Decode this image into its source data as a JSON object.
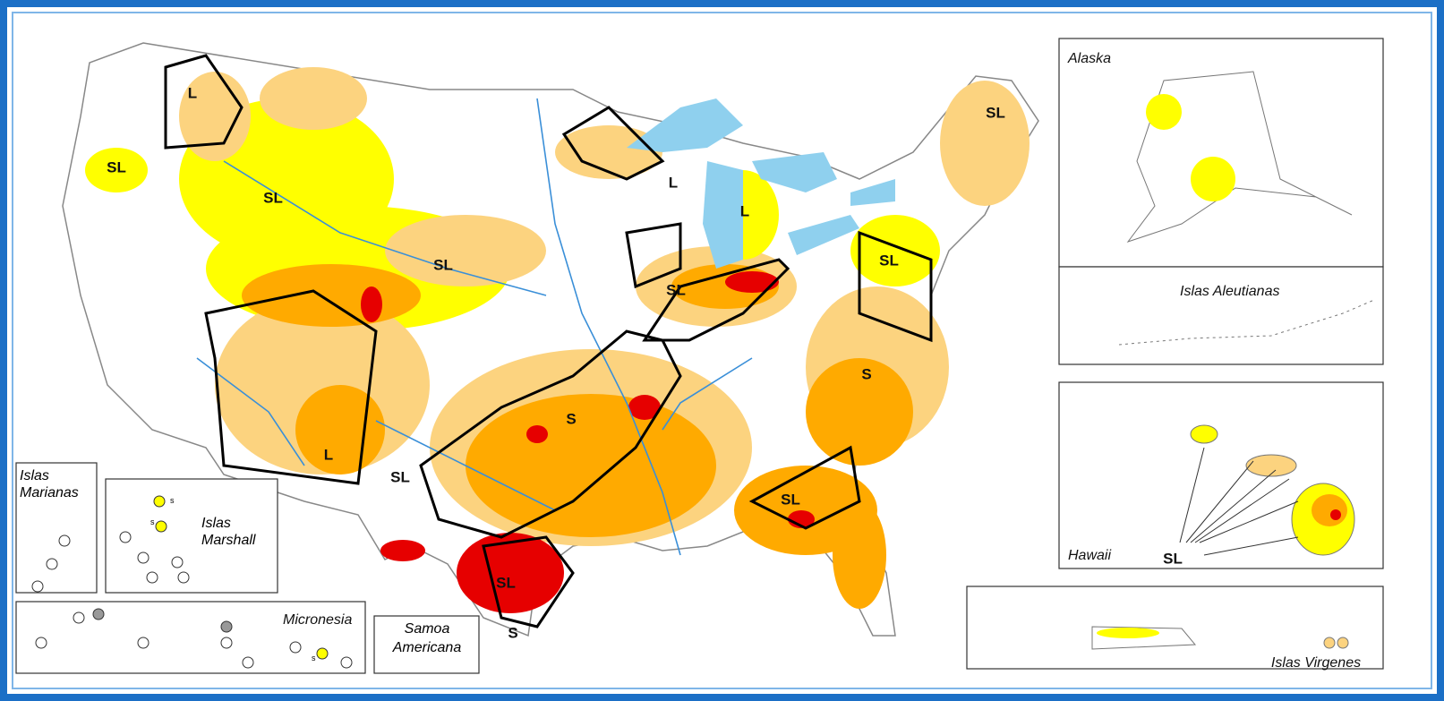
{
  "insets": {
    "alaska": "Alaska",
    "aleutians": "Islas Aleutianas",
    "hawaii": "Hawaii",
    "hawaii_label": "SL",
    "marianas": "Islas Marianas",
    "marshall": "Islas Marshall",
    "marshall_marks": [
      "s",
      "s"
    ],
    "micronesia": "Micronesia",
    "micronesia_mark": "s",
    "samoa": "Samoa Americana",
    "virgin": "Islas Virgenes"
  },
  "impact_labels": [
    "L",
    "SL",
    "SL",
    "SL",
    "L",
    "L",
    "SL",
    "SL",
    "SL",
    "S",
    "S",
    "L",
    "SL",
    "SL",
    "SL",
    "S"
  ]
}
